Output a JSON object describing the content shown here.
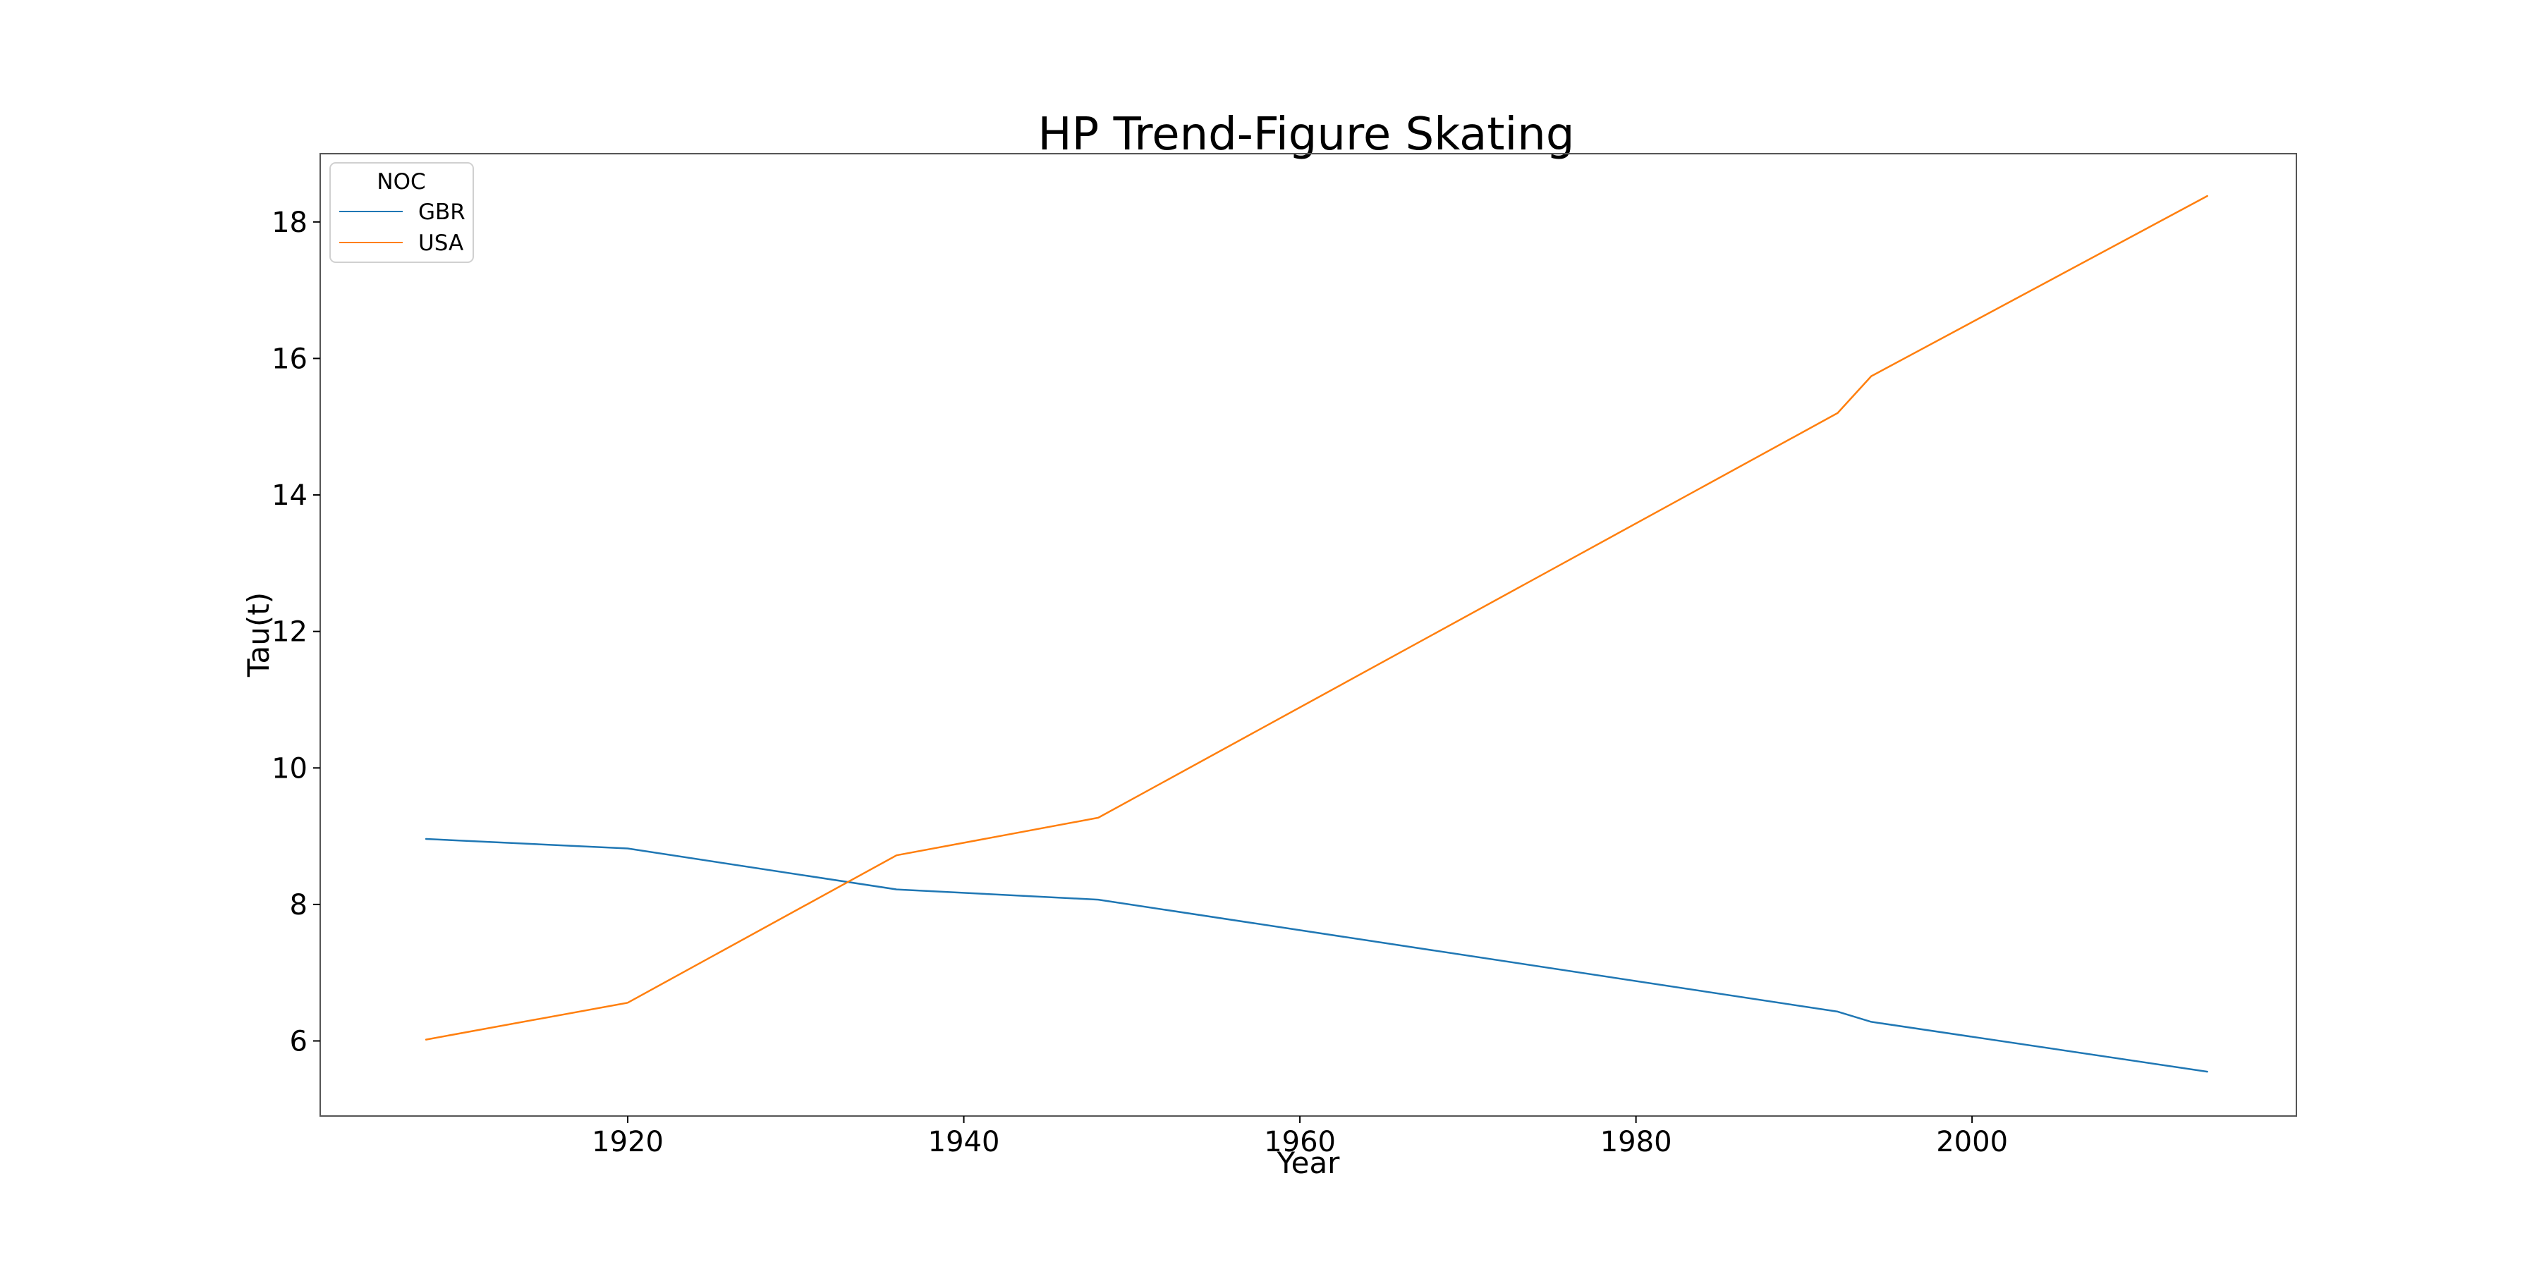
{
  "chart_data": {
    "type": "line",
    "title": "HP Trend-Figure Skating",
    "xlabel": "Year",
    "ylabel": "Tau(t)",
    "xlim": [
      1901.7,
      2019.3
    ],
    "ylim": [
      4.9,
      19.0
    ],
    "xticks": [
      1920,
      1940,
      1960,
      1980,
      2000
    ],
    "yticks": [
      6,
      8,
      10,
      12,
      14,
      16,
      18
    ],
    "grid": false,
    "legend": {
      "title": "NOC",
      "placement": "upper-left"
    },
    "series": [
      {
        "name": "GBR",
        "color": "#1f77b4",
        "x": [
          1908,
          1920,
          1936,
          1948,
          1992,
          1994,
          2014
        ],
        "y": [
          8.96,
          8.82,
          8.22,
          8.07,
          6.43,
          6.28,
          5.55
        ]
      },
      {
        "name": "USA",
        "color": "#ff7f0e",
        "x": [
          1908,
          1920,
          1936,
          1948,
          1992,
          1994,
          2014
        ],
        "y": [
          6.02,
          6.56,
          8.72,
          9.27,
          15.2,
          15.74,
          18.38
        ]
      }
    ]
  }
}
